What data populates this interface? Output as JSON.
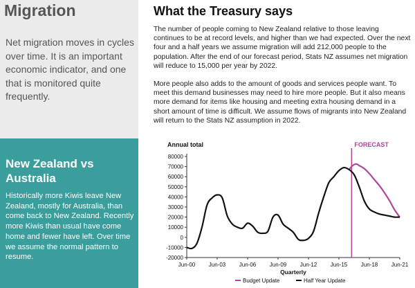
{
  "left": {
    "title": "Migration",
    "intro": "Net migration moves in cycles over time. It is an important economic indicator, and one that is monitored quite frequently.",
    "nz_heading": "New Zealand vs Australia",
    "nz_body": "Historically more Kiwis leave New Zealand, mostly for Australia, than come back to New Zealand. Recently more Kiwis than usual have come home and fewer have left. Over time we assume the normal pattern to resume."
  },
  "right": {
    "heading": "What the Treasury says",
    "para1": "The number of people coming to New Zealand relative to those leaving continues to be at record levels, and higher than we had expected. Over the next four and a half years we assume migration will add 212,000 people to the population. After the end of our forecast period, Stats NZ assumes net migration will reduce to 15,000 per year by 2022.",
    "para2": "More people also adds to the amount of goods and services people want. To meet this demand businesses may need to hire more people. But it also means more demand for items like housing and meeting extra housing demand in a short amount of time is difficult. We assume flows of migrants into New Zealand will return to the Stats NZ assumption in 2022."
  },
  "chart_data": {
    "type": "line",
    "ylabel": "Annual  total",
    "xlabel": "Quarterly",
    "ylim": [
      -20000,
      80000
    ],
    "yticks": [
      -20000,
      -10000,
      0,
      10000,
      20000,
      30000,
      40000,
      50000,
      60000,
      70000,
      80000
    ],
    "xlim": [
      2000.5,
      2021.5
    ],
    "xticks": [
      {
        "x": 2000.5,
        "label": "Jun-00"
      },
      {
        "x": 2003.5,
        "label": "Jun-03"
      },
      {
        "x": 2006.5,
        "label": "Jun-06"
      },
      {
        "x": 2009.5,
        "label": "Jun-09"
      },
      {
        "x": 2012.5,
        "label": "Jun-12"
      },
      {
        "x": 2015.5,
        "label": "Jun-15"
      },
      {
        "x": 2018.5,
        "label": "Jun-18"
      },
      {
        "x": 2021.5,
        "label": "Jun-21"
      }
    ],
    "forecast": {
      "x": 2016.75,
      "label": "FORECAST",
      "color": "#b0449a"
    },
    "series": [
      {
        "name": "Half Year Update",
        "color": "#111111",
        "x": [
          2000.5,
          2001.0,
          2001.5,
          2002.0,
          2002.5,
          2003.0,
          2003.5,
          2004.0,
          2004.5,
          2005.0,
          2005.5,
          2006.0,
          2006.5,
          2007.0,
          2007.5,
          2008.0,
          2008.5,
          2009.0,
          2009.5,
          2010.0,
          2010.5,
          2011.0,
          2011.5,
          2012.0,
          2012.5,
          2013.0,
          2013.5,
          2014.0,
          2014.5,
          2015.0,
          2015.5,
          2016.0,
          2016.5,
          2017.0,
          2017.5,
          2018.0,
          2018.5,
          2019.0,
          2019.5,
          2020.0,
          2020.5,
          2021.0,
          2021.5
        ],
        "y": [
          -10000,
          -11000,
          -6000,
          10000,
          32000,
          39000,
          42000,
          39000,
          21000,
          13000,
          10000,
          9000,
          14000,
          11000,
          5000,
          4000,
          6000,
          20000,
          22000,
          13000,
          9000,
          5000,
          -2000,
          -3000,
          -1000,
          6000,
          24000,
          40000,
          54000,
          60000,
          66000,
          69000,
          67000,
          62000,
          50000,
          36000,
          28000,
          25000,
          23000,
          22000,
          21000,
          20000,
          20000
        ]
      },
      {
        "name": "Budget Update",
        "color": "#b0449a",
        "x": [
          2016.5,
          2016.75,
          2017.0,
          2017.25,
          2017.5,
          2018.0,
          2018.5,
          2019.0,
          2019.5,
          2020.0,
          2020.5,
          2021.0,
          2021.5
        ],
        "y": [
          67000,
          70000,
          72000,
          72500,
          71000,
          68000,
          63000,
          57000,
          51000,
          44000,
          36000,
          27000,
          20000
        ]
      }
    ],
    "grid": false,
    "legend_placement": "bottom"
  }
}
